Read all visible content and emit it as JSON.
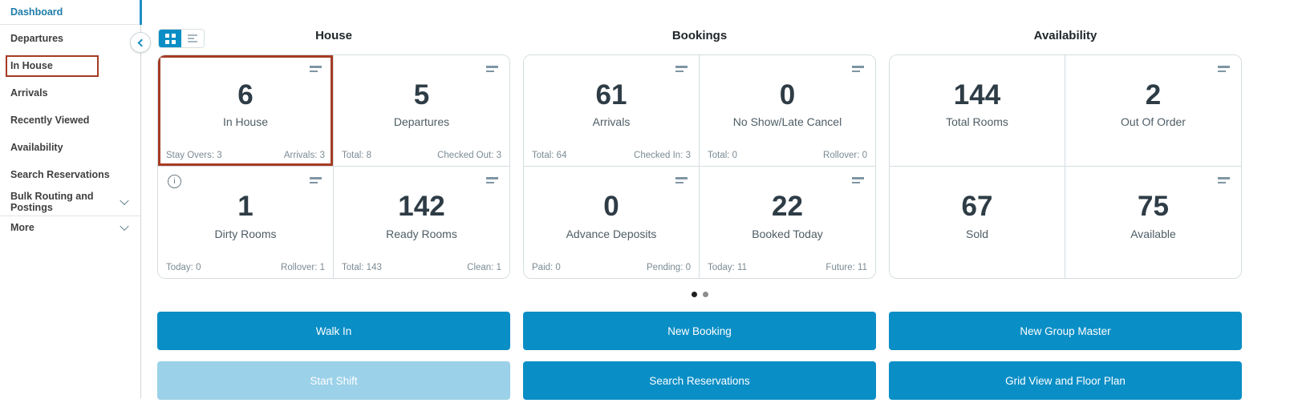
{
  "colors": {
    "primary": "#0a8ec6",
    "primary_disabled": "#9bd1e9",
    "alert_red": "#a63b24",
    "nav_active": "#1e7ca8"
  },
  "sidebar": {
    "items": [
      {
        "label": "Dashboard",
        "active": true
      },
      {
        "label": "Departures"
      },
      {
        "label": "In House",
        "highlighted": true
      },
      {
        "label": "Arrivals"
      },
      {
        "label": "Recently Viewed"
      },
      {
        "label": "Availability"
      },
      {
        "label": "Search Reservations"
      },
      {
        "label": "Bulk Routing and Postings",
        "expandable": true
      },
      {
        "label": "More",
        "expandable": true
      }
    ]
  },
  "view_toggle": {
    "options": [
      "grid",
      "list"
    ],
    "selected": "grid"
  },
  "sections": [
    {
      "title": "House",
      "tiles": [
        {
          "value": "6",
          "label": "In House",
          "foot_left": "Stay Overs: 3",
          "foot_right": "Arrivals: 3",
          "highlighted": true
        },
        {
          "value": "5",
          "label": "Departures",
          "foot_left": "Total: 8",
          "foot_right": "Checked Out: 3"
        },
        {
          "value": "1",
          "label": "Dirty Rooms",
          "foot_left": "Today: 0",
          "foot_right": "Rollover: 1",
          "info": true
        },
        {
          "value": "142",
          "label": "Ready Rooms",
          "foot_left": "Total: 143",
          "foot_right": "Clean: 1"
        }
      ]
    },
    {
      "title": "Bookings",
      "tiles": [
        {
          "value": "61",
          "label": "Arrivals",
          "foot_left": "Total: 64",
          "foot_right": "Checked In: 3"
        },
        {
          "value": "0",
          "label": "No Show/Late Cancel",
          "foot_left": "Total: 0",
          "foot_right": "Rollover: 0"
        },
        {
          "value": "0",
          "label": "Advance Deposits",
          "foot_left": "Paid: 0",
          "foot_right": "Pending: 0"
        },
        {
          "value": "22",
          "label": "Booked Today",
          "foot_left": "Today: 11",
          "foot_right": "Future: 11"
        }
      ]
    },
    {
      "title": "Availability",
      "tiles": [
        {
          "value": "144",
          "label": "Total Rooms"
        },
        {
          "value": "2",
          "label": "Out Of Order"
        },
        {
          "value": "67",
          "label": "Sold"
        },
        {
          "value": "75",
          "label": "Available"
        }
      ]
    }
  ],
  "pagination": {
    "dot_count": 2,
    "active_index": 0
  },
  "actions": [
    {
      "label": "Walk In",
      "disabled": false
    },
    {
      "label": "Start Shift",
      "disabled": true
    },
    {
      "label": "New Booking",
      "disabled": false
    },
    {
      "label": "Search Reservations",
      "disabled": false
    },
    {
      "label": "New Group Master",
      "disabled": false
    },
    {
      "label": "Grid View and Floor Plan",
      "disabled": false
    }
  ],
  "icons": {
    "info_glyph": "i"
  }
}
